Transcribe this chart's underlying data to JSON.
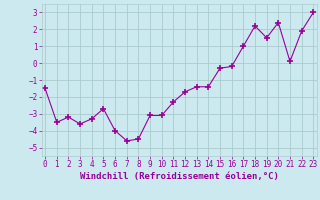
{
  "x": [
    0,
    1,
    2,
    3,
    4,
    5,
    6,
    7,
    8,
    9,
    10,
    11,
    12,
    13,
    14,
    15,
    16,
    17,
    18,
    19,
    20,
    21,
    22,
    23
  ],
  "y": [
    -1.5,
    -3.5,
    -3.2,
    -3.6,
    -3.3,
    -2.7,
    -4.0,
    -4.6,
    -4.5,
    -3.1,
    -3.1,
    -2.3,
    -1.7,
    -1.4,
    -1.4,
    -0.3,
    -0.2,
    1.0,
    2.2,
    1.5,
    2.4,
    0.1,
    1.9,
    3.0
  ],
  "line_color": "#990099",
  "marker": "+",
  "marker_size": 5,
  "marker_linewidth": 1.2,
  "bg_color": "#cce9f0",
  "grid_color": "#aacccc",
  "xlabel": "Windchill (Refroidissement éolien,°C)",
  "xlabel_color": "#990099",
  "xlabel_fontsize": 6.5,
  "tick_color": "#990099",
  "tick_fontsize": 5.5,
  "yticks": [
    -5,
    -4,
    -3,
    -2,
    -1,
    0,
    1,
    2,
    3
  ],
  "xticks": [
    0,
    1,
    2,
    3,
    4,
    5,
    6,
    7,
    8,
    9,
    10,
    11,
    12,
    13,
    14,
    15,
    16,
    17,
    18,
    19,
    20,
    21,
    22,
    23
  ],
  "ylim": [
    -5.5,
    3.5
  ],
  "xlim": [
    -0.3,
    23.3
  ]
}
